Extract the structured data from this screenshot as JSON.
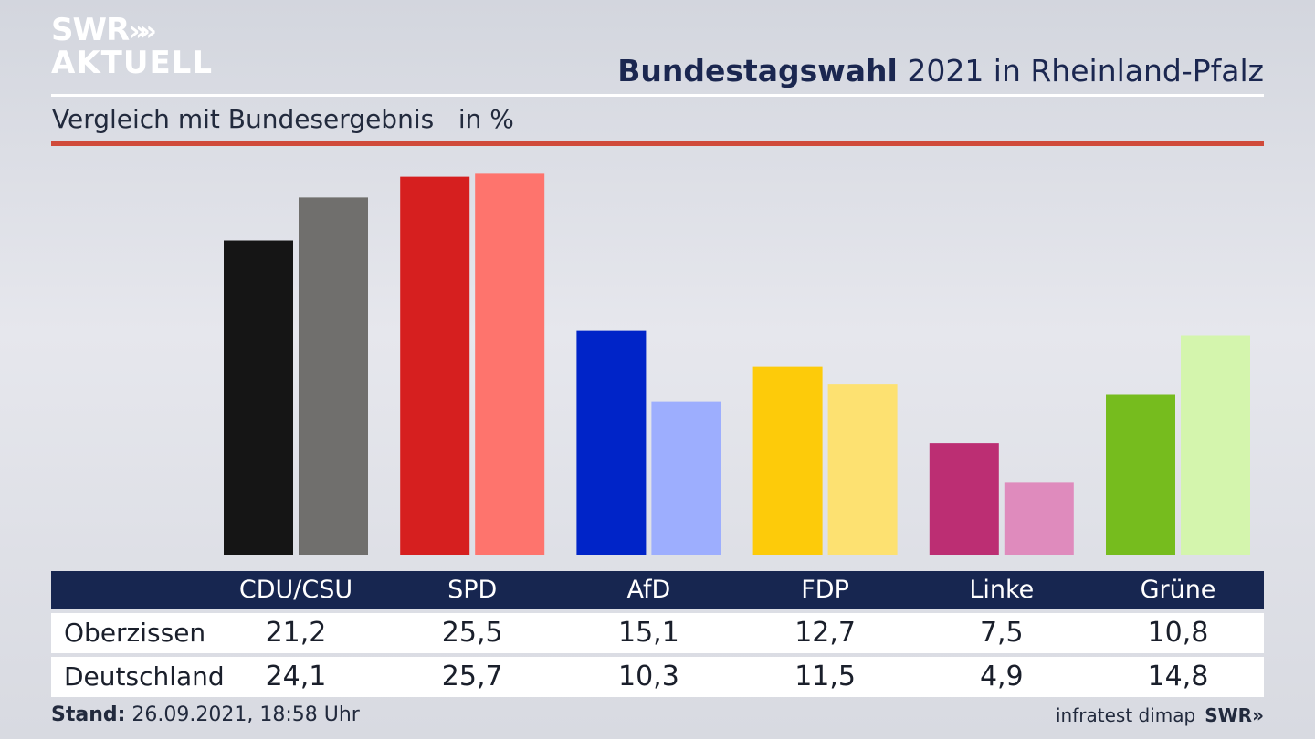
{
  "header": {
    "logo_line1": "SWR",
    "logo_arrows": "»",
    "logo_line2": "AKTUELL",
    "title_bold": "Bundestagswahl",
    "title_rest": " 2021 in Rheinland-Pfalz",
    "subtitle": "Vergleich mit Bundesergebnis   in %"
  },
  "colors": {
    "navy": "#172650",
    "accent_red": "#d04a3a"
  },
  "chart_data": {
    "type": "bar",
    "categories": [
      "CDU/CSU",
      "SPD",
      "AfD",
      "FDP",
      "Linke",
      "Grüne"
    ],
    "series": [
      {
        "name": "Oberzissen",
        "values": [
          21.2,
          25.5,
          15.1,
          12.7,
          7.5,
          10.8
        ],
        "colors": [
          "#151515",
          "#d61f1f",
          "#0024c8",
          "#fdcb0a",
          "#bc2e73",
          "#76bc1e"
        ]
      },
      {
        "name": "Deutschland",
        "values": [
          24.1,
          25.7,
          10.3,
          11.5,
          4.9,
          14.8
        ],
        "colors": [
          "#706f6d",
          "#fe746d",
          "#9daefe",
          "#fde171",
          "#df8bbd",
          "#d4f5ad"
        ]
      }
    ],
    "ylim": [
      0,
      25.7
    ],
    "grid": false
  },
  "table": {
    "headers": [
      "CDU/CSU",
      "SPD",
      "AfD",
      "FDP",
      "Linke",
      "Grüne"
    ],
    "rows": [
      {
        "label": "Oberzissen",
        "values": [
          "21,2",
          "25,5",
          "15,1",
          "12,7",
          "7,5",
          "10,8"
        ]
      },
      {
        "label": "Deutschland",
        "values": [
          "24,1",
          "25,7",
          "10,3",
          "11,5",
          "4,9",
          "14,8"
        ]
      }
    ]
  },
  "footer": {
    "stand_label": "Stand:",
    "stand_value": " 26.09.2021, 18:58 Uhr",
    "source": "infratest dimap",
    "brand": "SWR»"
  }
}
